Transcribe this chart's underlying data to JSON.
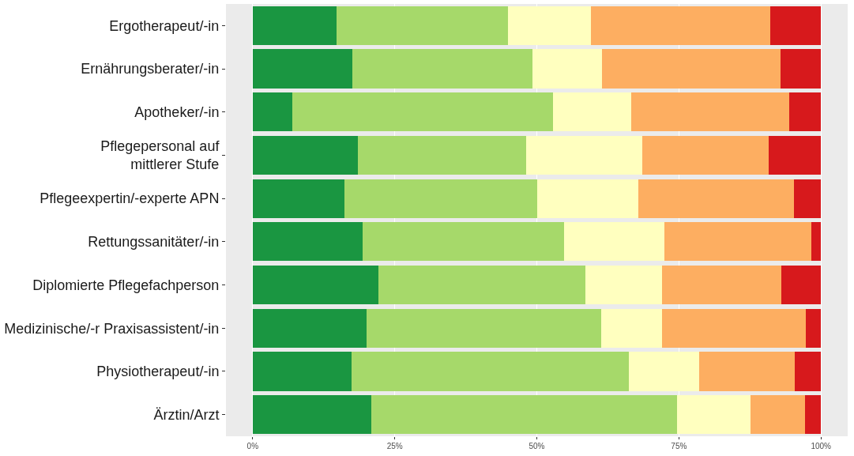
{
  "chart_data": {
    "type": "bar",
    "orientation": "horizontal",
    "stacked": true,
    "categories": [
      "Ergotherapeut/-in",
      "Ernährungsberater/-in",
      "Apotheker/-in",
      "Pflegepersonal auf\nmittlerer Stufe",
      "Pflegeexpertin/-experte APN",
      "Rettungssanitäter/-in",
      "Diplomierte Pflegefachperson",
      "Medizinische/-r Praxisassistent/-in",
      "Physiotherapeut/-in",
      "Ärztin/Arzt"
    ],
    "series": [
      {
        "color": "#1a9641",
        "values": [
          14.7,
          17.5,
          7.0,
          18.5,
          16.2,
          19.3,
          22.1,
          20.0,
          17.4,
          20.9
        ]
      },
      {
        "color": "#a6d96a",
        "values": [
          30.2,
          31.7,
          45.8,
          29.6,
          33.9,
          35.5,
          36.5,
          41.3,
          48.8,
          53.8
        ]
      },
      {
        "color": "#ffffbf",
        "values": [
          14.6,
          12.2,
          13.8,
          20.4,
          17.7,
          17.7,
          13.5,
          10.7,
          12.3,
          12.9
        ]
      },
      {
        "color": "#fdae61",
        "values": [
          31.6,
          31.5,
          27.8,
          22.3,
          27.5,
          25.8,
          20.9,
          25.4,
          16.9,
          9.6
        ]
      },
      {
        "color": "#d7191c",
        "values": [
          8.9,
          7.1,
          5.6,
          9.2,
          4.7,
          1.7,
          7.0,
          2.6,
          4.6,
          2.8
        ]
      }
    ],
    "xlim": [
      -4.7,
      104.7
    ],
    "xticks": [
      {
        "value": 0,
        "label": "0%"
      },
      {
        "value": 25,
        "label": "25%"
      },
      {
        "value": 50,
        "label": "50%"
      },
      {
        "value": 75,
        "label": "75%"
      },
      {
        "value": 100,
        "label": "100%"
      }
    ],
    "grid": "x"
  }
}
